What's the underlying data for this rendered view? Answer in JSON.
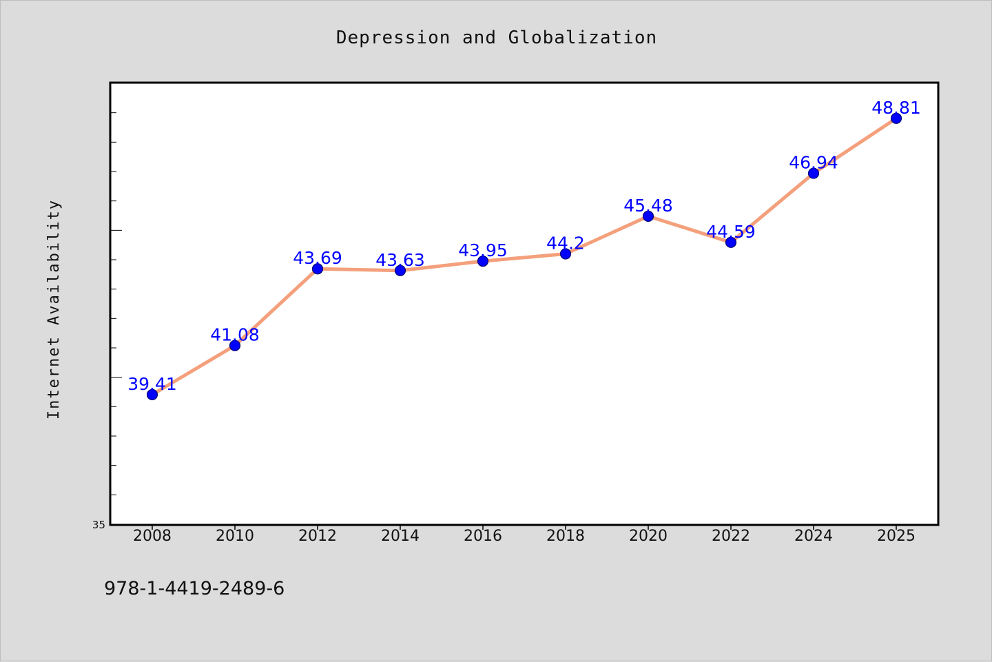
{
  "chart_data": {
    "type": "line",
    "title": "Depression and Globalization",
    "xlabel": "",
    "ylabel": "Internet Availability",
    "categories": [
      "2008",
      "2010",
      "2012",
      "2014",
      "2016",
      "2018",
      "2020",
      "2022",
      "2024",
      "2025"
    ],
    "series": [
      {
        "values": [
          39.41,
          41.08,
          43.69,
          43.63,
          43.95,
          44.2,
          45.48,
          44.59,
          46.94,
          48.81
        ],
        "labels": [
          "39.41",
          "41.08",
          "43.69",
          "43.63",
          "43.95",
          "44.2",
          "45.48",
          "44.59",
          "46.94",
          "48.81"
        ]
      }
    ],
    "ylim": [
      35,
      50
    ],
    "ytick_labels": [
      "35"
    ],
    "grid": false,
    "legend": "none",
    "colors": {
      "line": "#f4a07c",
      "marker": "#0000ff",
      "label": "#0000ff",
      "background": "#dcdcdc",
      "plot_area": "#ffffff"
    }
  },
  "footnote": "978-1-4419-2489-6"
}
